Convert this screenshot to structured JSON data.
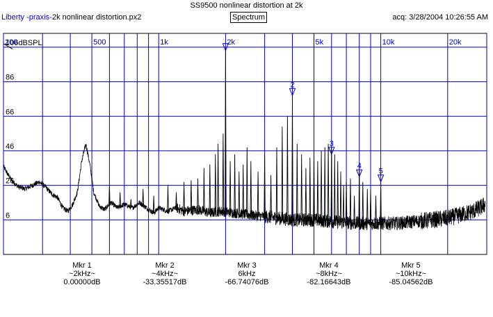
{
  "header": {
    "title": "SS9500 nonlinear distortion at 2k",
    "app_name": "Liberty -praxis-",
    "file_name": "2k nonlinear distortion.px2",
    "view_button": "Spectrum",
    "acquired": "acq: 3/28/2004 10:26:55 AM"
  },
  "chart_data": {
    "type": "line",
    "x_scale": "log",
    "xlim": [
      200,
      30000
    ],
    "ylim": [
      -14,
      114
    ],
    "x_ticks": [
      {
        "value": 200,
        "label": "200"
      },
      {
        "value": 500,
        "label": "500"
      },
      {
        "value": 1000,
        "label": "1k"
      },
      {
        "value": 2000,
        "label": "2k"
      },
      {
        "value": 5000,
        "label": "5k"
      },
      {
        "value": 10000,
        "label": "10k"
      },
      {
        "value": 20000,
        "label": "20k"
      }
    ],
    "x_gridlines": [
      200,
      300,
      400,
      500,
      600,
      700,
      800,
      900,
      1000,
      2000,
      3000,
      4000,
      5000,
      6000,
      7000,
      8000,
      9000,
      10000,
      20000,
      30000
    ],
    "y_ticks": [
      {
        "value": 106,
        "label": "106dBSPL"
      },
      {
        "value": 86,
        "label": "86"
      },
      {
        "value": 66,
        "label": "66"
      },
      {
        "value": 46,
        "label": "46"
      },
      {
        "value": 26,
        "label": "26"
      },
      {
        "value": 6,
        "label": "6"
      }
    ],
    "grid": true,
    "series": [
      {
        "color": "#000000",
        "baseline": [
          [
            200,
            37
          ],
          [
            210,
            32
          ],
          [
            220,
            28
          ],
          [
            235,
            25
          ],
          [
            250,
            24
          ],
          [
            270,
            26
          ],
          [
            290,
            28
          ],
          [
            310,
            25
          ],
          [
            330,
            21
          ],
          [
            350,
            19
          ],
          [
            370,
            13
          ],
          [
            390,
            11
          ],
          [
            410,
            15
          ],
          [
            430,
            22
          ],
          [
            450,
            40
          ],
          [
            470,
            50
          ],
          [
            490,
            38
          ],
          [
            510,
            22
          ],
          [
            540,
            14
          ],
          [
            570,
            12
          ],
          [
            610,
            16
          ],
          [
            650,
            13
          ],
          [
            700,
            15
          ],
          [
            760,
            13
          ],
          [
            820,
            16
          ],
          [
            880,
            13
          ],
          [
            950,
            10
          ],
          [
            1000,
            13
          ],
          [
            1100,
            11
          ],
          [
            1200,
            13
          ],
          [
            1300,
            11
          ],
          [
            1500,
            12
          ],
          [
            1700,
            10
          ],
          [
            1900,
            11
          ],
          [
            2200,
            10
          ],
          [
            2500,
            9
          ],
          [
            3000,
            8
          ],
          [
            4000,
            6
          ],
          [
            5000,
            6
          ],
          [
            6000,
            5
          ],
          [
            8000,
            4
          ],
          [
            10000,
            4
          ],
          [
            12000,
            4
          ],
          [
            14000,
            5
          ],
          [
            17000,
            6
          ],
          [
            20000,
            7
          ],
          [
            23000,
            9
          ],
          [
            26000,
            11
          ],
          [
            28000,
            13
          ],
          [
            29500,
            15
          ]
        ],
        "peaks": [
          [
            600,
            26
          ],
          [
            670,
            22
          ],
          [
            750,
            18
          ],
          [
            850,
            24
          ],
          [
            950,
            20
          ],
          [
            1000,
            14
          ],
          [
            1100,
            26
          ],
          [
            1200,
            22
          ],
          [
            1300,
            28
          ],
          [
            1400,
            29
          ],
          [
            1500,
            30
          ],
          [
            1600,
            36
          ],
          [
            1700,
            38
          ],
          [
            1800,
            44
          ],
          [
            1850,
            50
          ],
          [
            1950,
            56
          ],
          [
            2000,
            105
          ],
          [
            2100,
            40
          ],
          [
            2200,
            44
          ],
          [
            2300,
            34
          ],
          [
            2400,
            38
          ],
          [
            2500,
            48
          ],
          [
            2600,
            40
          ],
          [
            2800,
            34
          ],
          [
            3000,
            44
          ],
          [
            3200,
            32
          ],
          [
            3400,
            48
          ],
          [
            3600,
            60
          ],
          [
            3800,
            66
          ],
          [
            4000,
            78
          ],
          [
            4200,
            50
          ],
          [
            4400,
            44
          ],
          [
            4600,
            36
          ],
          [
            4800,
            42
          ],
          [
            5000,
            46
          ],
          [
            5200,
            40
          ],
          [
            5400,
            46
          ],
          [
            5600,
            48
          ],
          [
            5800,
            50
          ],
          [
            6000,
            48
          ],
          [
            6200,
            44
          ],
          [
            6400,
            40
          ],
          [
            6600,
            34
          ],
          [
            6800,
            26
          ],
          [
            7000,
            28
          ],
          [
            7300,
            30
          ],
          [
            7600,
            20
          ],
          [
            8000,
            35
          ],
          [
            8300,
            28
          ],
          [
            8700,
            24
          ],
          [
            9000,
            24
          ],
          [
            9500,
            20
          ],
          [
            10000,
            28
          ]
        ]
      }
    ],
    "markers": [
      {
        "label": "Mkr 1",
        "freq": "~2kHz~",
        "value": "0.00000dB",
        "num": "",
        "x": 2000,
        "y": 104
      },
      {
        "label": "Mkr 2",
        "freq": "~4kHz~",
        "value": "-33.35517dB",
        "num": "2",
        "x": 4000,
        "y": 78
      },
      {
        "label": "Mkr 3",
        "freq": "6kHz",
        "value": "-66.74076dB",
        "num": "3",
        "x": 6000,
        "y": 44
      },
      {
        "label": "Mkr 4",
        "freq": "~8kHz~",
        "value": "-82.16643dB",
        "num": "4",
        "x": 8000,
        "y": 31
      },
      {
        "label": "Mkr 5",
        "freq": "~10kHz~",
        "value": "-85.04562dB",
        "num": "5",
        "x": 10000,
        "y": 28
      }
    ]
  }
}
